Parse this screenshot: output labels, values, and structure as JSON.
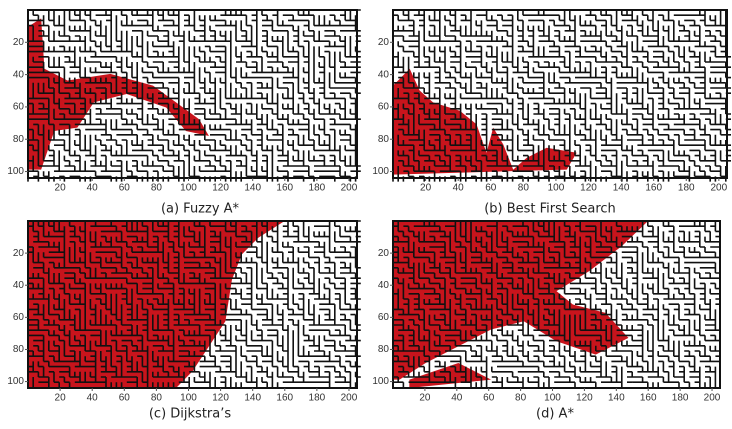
{
  "panels": [
    {
      "caption": "(a)  Fuzzy A*",
      "xlim": [
        0,
        205
      ],
      "ylim": [
        0,
        104
      ],
      "xticks": [
        20,
        40,
        60,
        80,
        100,
        120,
        140,
        160,
        180,
        200
      ],
      "yticks": [
        20,
        40,
        60,
        80,
        100
      ]
    },
    {
      "caption": "(b)  Best First Search",
      "xlim": [
        0,
        205
      ],
      "ylim": [
        0,
        104
      ],
      "xticks": [
        20,
        40,
        60,
        80,
        100,
        120,
        140,
        160,
        180,
        200
      ],
      "yticks": [
        20,
        40,
        60,
        80,
        100
      ]
    },
    {
      "caption": "(c) Dijkstra’s",
      "xlim": [
        0,
        205
      ],
      "ylim": [
        0,
        104
      ],
      "xticks": [
        20,
        40,
        60,
        80,
        100,
        120,
        140,
        160,
        180,
        200
      ],
      "yticks": [
        20,
        40,
        60,
        80,
        100
      ]
    },
    {
      "caption": "(d) A*",
      "xlim": [
        0,
        205
      ],
      "ylim": [
        0,
        104
      ],
      "xticks": [
        20,
        40,
        60,
        80,
        100,
        120,
        140,
        160,
        180,
        200
      ],
      "yticks": [
        20,
        40,
        60,
        80,
        100
      ]
    }
  ]
}
